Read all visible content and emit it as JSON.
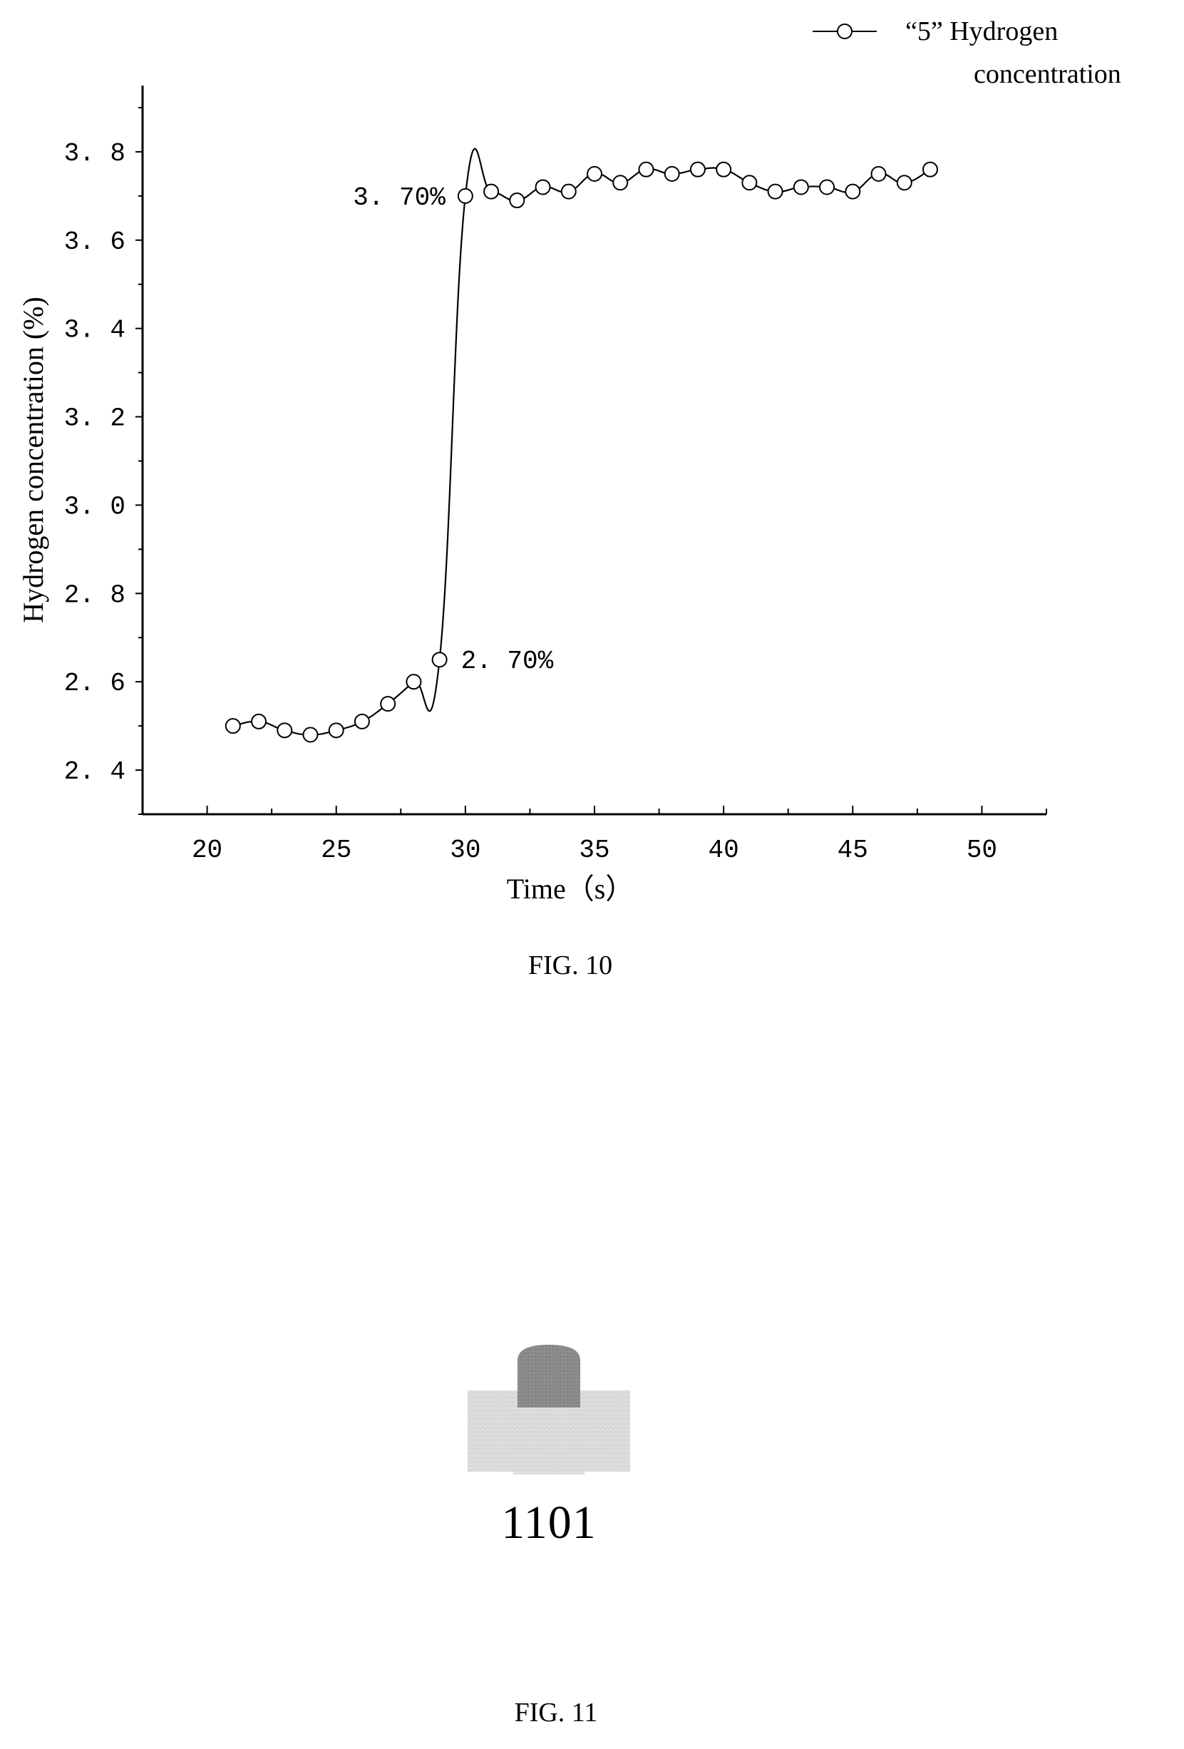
{
  "chart_data": {
    "type": "line",
    "xlabel": "Time（s）",
    "ylabel": "Hydrogen concentration (%)",
    "xlim": [
      17.5,
      52.5
    ],
    "ylim": [
      2.3,
      3.95
    ],
    "xticks": [
      20,
      25,
      30,
      35,
      40,
      45,
      50
    ],
    "yticks": [
      2.4,
      2.6,
      2.8,
      3.0,
      3.2,
      3.4,
      3.6,
      3.8
    ],
    "ytick_labels": [
      "2. 4",
      "2. 6",
      "2. 8",
      "3. 0",
      "3. 2",
      "3. 4",
      "3. 6",
      "3. 8"
    ],
    "grid": false,
    "legend_position": "top-right",
    "series": [
      {
        "name": "“5” Hydrogen concentration",
        "marker": "open-circle",
        "x": [
          21,
          22,
          23,
          24,
          25,
          26,
          27,
          28,
          29,
          30,
          31,
          32,
          33,
          34,
          35,
          36,
          37,
          38,
          39,
          40,
          41,
          42,
          43,
          44,
          45,
          46,
          47,
          48
        ],
        "y": [
          2.5,
          2.51,
          2.49,
          2.48,
          2.49,
          2.51,
          2.55,
          2.6,
          2.65,
          3.7,
          3.71,
          3.69,
          3.72,
          3.71,
          3.75,
          3.73,
          3.76,
          3.75,
          3.76,
          3.76,
          3.73,
          3.71,
          3.72,
          3.72,
          3.71,
          3.75,
          3.73,
          3.76
        ]
      }
    ],
    "annotations": [
      {
        "text": "2. 70%",
        "x": 29,
        "y": 2.65
      },
      {
        "text": "3. 70%",
        "x": 30,
        "y": 3.7
      }
    ]
  },
  "legend": {
    "line1": "“5” Hydrogen",
    "line2": "concentration"
  },
  "figures": {
    "fig10_caption": "FIG. 10",
    "fig11_caption": "FIG. 11",
    "fig11_reference": "1101"
  }
}
